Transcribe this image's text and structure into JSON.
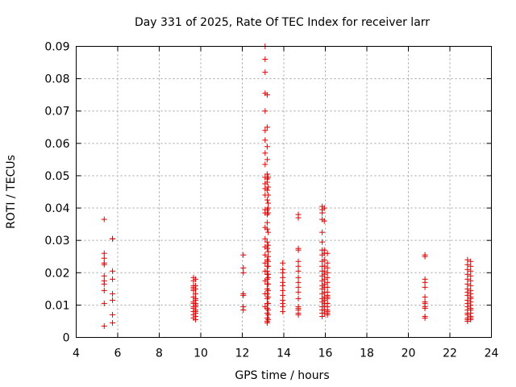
{
  "chart_data": {
    "type": "scatter",
    "title": "Day 331 of 2025, Rate Of TEC Index for receiver larr",
    "xlabel": "GPS time / hours",
    "ylabel": "ROTI / TECUs",
    "xlim": [
      4,
      24
    ],
    "ylim": [
      0,
      0.09
    ],
    "xticks": [
      "4",
      "6",
      "8",
      "10",
      "12",
      "14",
      "16",
      "18",
      "20",
      "22",
      "24"
    ],
    "yticks": [
      "0",
      "0.01",
      "0.02",
      "0.03",
      "0.04",
      "0.05",
      "0.06",
      "0.07",
      "0.08",
      "0.09"
    ],
    "grid": true,
    "marker": "+",
    "color": "#e00000",
    "series": [
      {
        "x": [
          5.35,
          5.35,
          5.35,
          5.35,
          5.35,
          5.35,
          5.35,
          5.35,
          5.35,
          5.35,
          5.35,
          5.75,
          5.75,
          5.75,
          5.75,
          5.75,
          5.75,
          5.75,
          5.75,
          9.65,
          9.65,
          9.65,
          9.65,
          9.65,
          9.65,
          9.65,
          9.65,
          9.65,
          9.65,
          9.65,
          9.65,
          9.65,
          9.65,
          9.75,
          9.75,
          9.75,
          9.75,
          9.75,
          9.75,
          9.75,
          9.75,
          9.75,
          9.75,
          9.75,
          9.75,
          9.75,
          9.75,
          12.05,
          12.05,
          12.05,
          12.05,
          12.05,
          12.05,
          12.05,
          13.1,
          13.1,
          13.1,
          13.1,
          13.1,
          13.1,
          13.1,
          13.1,
          13.1,
          13.1,
          13.1,
          13.1,
          13.1,
          13.1,
          13.1,
          13.1,
          13.1,
          13.1,
          13.1,
          13.1,
          13.1,
          13.1,
          13.1,
          13.1,
          13.2,
          13.2,
          13.2,
          13.2,
          13.2,
          13.2,
          13.2,
          13.2,
          13.2,
          13.2,
          13.2,
          13.2,
          13.2,
          13.2,
          13.2,
          13.2,
          13.2,
          13.2,
          13.2,
          13.2,
          13.2,
          13.2,
          13.2,
          13.2,
          13.2,
          13.2,
          13.2,
          13.2,
          13.2,
          13.2,
          13.25,
          13.25,
          13.25,
          13.25,
          13.25,
          13.25,
          13.25,
          13.25,
          13.25,
          13.25,
          13.25,
          13.25,
          13.25,
          13.25,
          13.25,
          13.25,
          13.25,
          13.25,
          13.25,
          13.25,
          13.25,
          13.95,
          13.95,
          13.95,
          13.95,
          13.95,
          13.95,
          13.95,
          13.95,
          13.95,
          13.95,
          13.95,
          13.95,
          14.7,
          14.7,
          14.7,
          14.7,
          14.7,
          14.7,
          14.7,
          14.7,
          14.7,
          14.7,
          14.7,
          14.7,
          14.7,
          14.7,
          14.7,
          14.7,
          14.7,
          15.85,
          15.85,
          15.85,
          15.85,
          15.85,
          15.85,
          15.85,
          15.85,
          15.85,
          15.85,
          15.85,
          15.85,
          15.85,
          15.85,
          15.85,
          15.85,
          15.85,
          15.85,
          15.85,
          15.85,
          15.85,
          15.85,
          15.95,
          15.95,
          15.95,
          15.95,
          15.95,
          15.95,
          15.95,
          15.95,
          15.95,
          15.95,
          15.95,
          15.95,
          15.95,
          15.95,
          15.95,
          15.95,
          15.95,
          15.95,
          16.1,
          16.1,
          16.1,
          16.1,
          16.1,
          16.1,
          16.1,
          16.1,
          16.1,
          16.1,
          16.1,
          16.1,
          16.1,
          16.1,
          16.1,
          16.1,
          16.1,
          16.1,
          20.8,
          20.8,
          20.8,
          20.8,
          20.8,
          20.8,
          20.8,
          20.8,
          20.8,
          20.8,
          20.8,
          20.8,
          22.85,
          22.85,
          22.85,
          22.85,
          22.85,
          22.85,
          22.85,
          22.85,
          22.85,
          22.85,
          22.85,
          22.85,
          22.85,
          22.85,
          22.85,
          22.85,
          22.85,
          22.85,
          23.0,
          23.0,
          23.0,
          23.0,
          23.0,
          23.0,
          23.0,
          23.0,
          23.0,
          23.0,
          23.0,
          23.0,
          23.0,
          23.0,
          23.0,
          23.0,
          23.0,
          23.0
        ],
        "y": [
          0.0365,
          0.026,
          0.0245,
          0.0225,
          0.019,
          0.0175,
          0.0165,
          0.0145,
          0.0105,
          0.0035,
          0.023,
          0.0305,
          0.0305,
          0.0205,
          0.018,
          0.0135,
          0.0115,
          0.007,
          0.0045,
          0.0185,
          0.0175,
          0.016,
          0.0155,
          0.015,
          0.0145,
          0.0125,
          0.011,
          0.0105,
          0.0095,
          0.009,
          0.008,
          0.007,
          0.006,
          0.018,
          0.016,
          0.015,
          0.0135,
          0.012,
          0.0115,
          0.0105,
          0.01,
          0.0095,
          0.0085,
          0.008,
          0.0075,
          0.0065,
          0.0055,
          0.0255,
          0.0215,
          0.02,
          0.0135,
          0.013,
          0.0095,
          0.0085,
          0.09,
          0.086,
          0.082,
          0.0755,
          0.07,
          0.064,
          0.061,
          0.057,
          0.0535,
          0.0495,
          0.0475,
          0.046,
          0.044,
          0.0395,
          0.0385,
          0.034,
          0.0305,
          0.028,
          0.0255,
          0.023,
          0.0205,
          0.0175,
          0.0135,
          0.0095,
          0.075,
          0.065,
          0.059,
          0.055,
          0.0505,
          0.049,
          0.048,
          0.0455,
          0.0425,
          0.0395,
          0.038,
          0.0355,
          0.0335,
          0.0295,
          0.0275,
          0.024,
          0.022,
          0.0205,
          0.0195,
          0.018,
          0.0165,
          0.015,
          0.0135,
          0.012,
          0.0105,
          0.009,
          0.0075,
          0.006,
          0.005,
          0.0045,
          0.0495,
          0.0465,
          0.044,
          0.0415,
          0.04,
          0.0385,
          0.0325,
          0.0285,
          0.0265,
          0.025,
          0.0235,
          0.022,
          0.0195,
          0.0185,
          0.0165,
          0.0145,
          0.0125,
          0.0105,
          0.0085,
          0.007,
          0.0055,
          0.023,
          0.021,
          0.02,
          0.0185,
          0.017,
          0.016,
          0.0145,
          0.013,
          0.0115,
          0.0105,
          0.0095,
          0.008,
          0.038,
          0.037,
          0.0275,
          0.027,
          0.0235,
          0.022,
          0.0205,
          0.0185,
          0.017,
          0.0155,
          0.014,
          0.012,
          0.0095,
          0.009,
          0.0085,
          0.0075,
          0.007,
          0.0405,
          0.0395,
          0.0385,
          0.0365,
          0.0325,
          0.0295,
          0.027,
          0.0255,
          0.0235,
          0.022,
          0.0205,
          0.019,
          0.0175,
          0.016,
          0.015,
          0.0135,
          0.012,
          0.011,
          0.0095,
          0.0085,
          0.0075,
          0.0065,
          0.04,
          0.036,
          0.027,
          0.026,
          0.024,
          0.022,
          0.0205,
          0.0195,
          0.018,
          0.0165,
          0.0155,
          0.014,
          0.0125,
          0.0115,
          0.0105,
          0.0095,
          0.0085,
          0.0075,
          0.026,
          0.023,
          0.0215,
          0.02,
          0.0185,
          0.017,
          0.0155,
          0.014,
          0.013,
          0.012,
          0.0105,
          0.0095,
          0.0085,
          0.008,
          0.0075,
          0.007,
          0.0105,
          0.0125,
          0.0255,
          0.025,
          0.018,
          0.017,
          0.0155,
          0.0125,
          0.011,
          0.0095,
          0.009,
          0.0065,
          0.006,
          0.0105,
          0.024,
          0.0225,
          0.021,
          0.0195,
          0.018,
          0.0165,
          0.015,
          0.014,
          0.013,
          0.0115,
          0.0105,
          0.0095,
          0.0085,
          0.0075,
          0.007,
          0.006,
          0.0055,
          0.005,
          0.0235,
          0.022,
          0.0205,
          0.019,
          0.0175,
          0.016,
          0.0145,
          0.0135,
          0.012,
          0.011,
          0.01,
          0.009,
          0.0085,
          0.0075,
          0.0065,
          0.006,
          0.0055,
          0.0125
        ]
      }
    ]
  }
}
